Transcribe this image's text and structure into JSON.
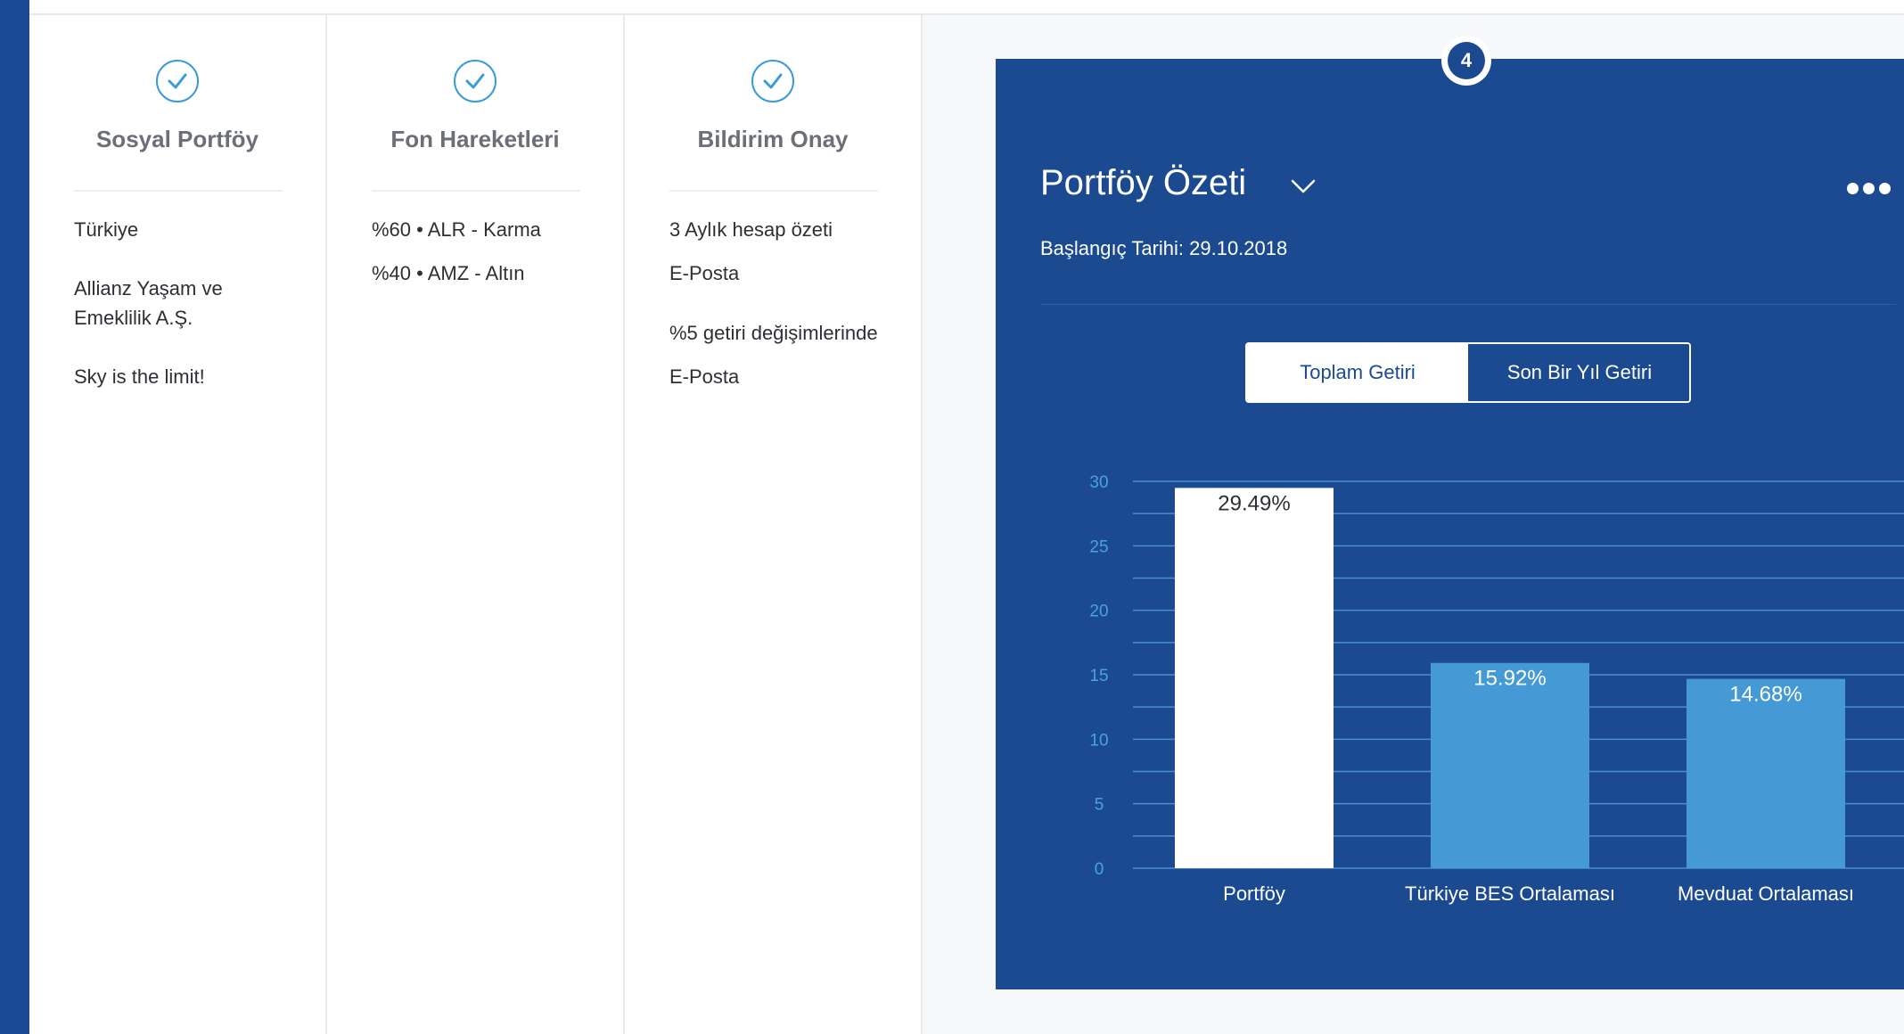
{
  "steps": [
    {
      "title": "Sosyal Portföy",
      "items": [
        "Türkiye",
        "Allianz Yaşam ve Emeklilik A.Ş.",
        "Sky is the limit!"
      ]
    },
    {
      "title": "Fon Hareketleri",
      "items": [
        "%60 • ALR - Karma",
        "%40 • AMZ - Altın"
      ]
    },
    {
      "title": "Bildirim Onay",
      "items": [
        "3 Aylık hesap özeti",
        "E-Posta",
        "%5 getiri değişimlerinde",
        "E-Posta"
      ]
    }
  ],
  "panel": {
    "step_number": "4",
    "title": "Portföy Özeti",
    "start_date": "Başlangıç Tarihi: 29.10.2018",
    "tabs": [
      "Toplam Getiri",
      "Son Bir Yıl Getiri"
    ],
    "active_tab": "Toplam Getiri"
  },
  "colors": {
    "panel_bg": "#1b4a91",
    "accent": "#3a9bd6",
    "bar_primary": "#ffffff",
    "bar_secondary": "#4599d4"
  },
  "chart_data": {
    "type": "bar",
    "categories": [
      "Portföy",
      "Türkiye BES Ortalaması",
      "Mevduat Ortalaması"
    ],
    "values": [
      29.49,
      15.92,
      14.68
    ],
    "value_labels": [
      "29.49%",
      "15.92%",
      "14.68%"
    ],
    "yticks": [
      "0",
      "5",
      "10",
      "15",
      "20",
      "25",
      "30"
    ],
    "ylim": [
      0,
      30
    ],
    "grid": true,
    "title": "",
    "xlabel": "",
    "ylabel": ""
  }
}
